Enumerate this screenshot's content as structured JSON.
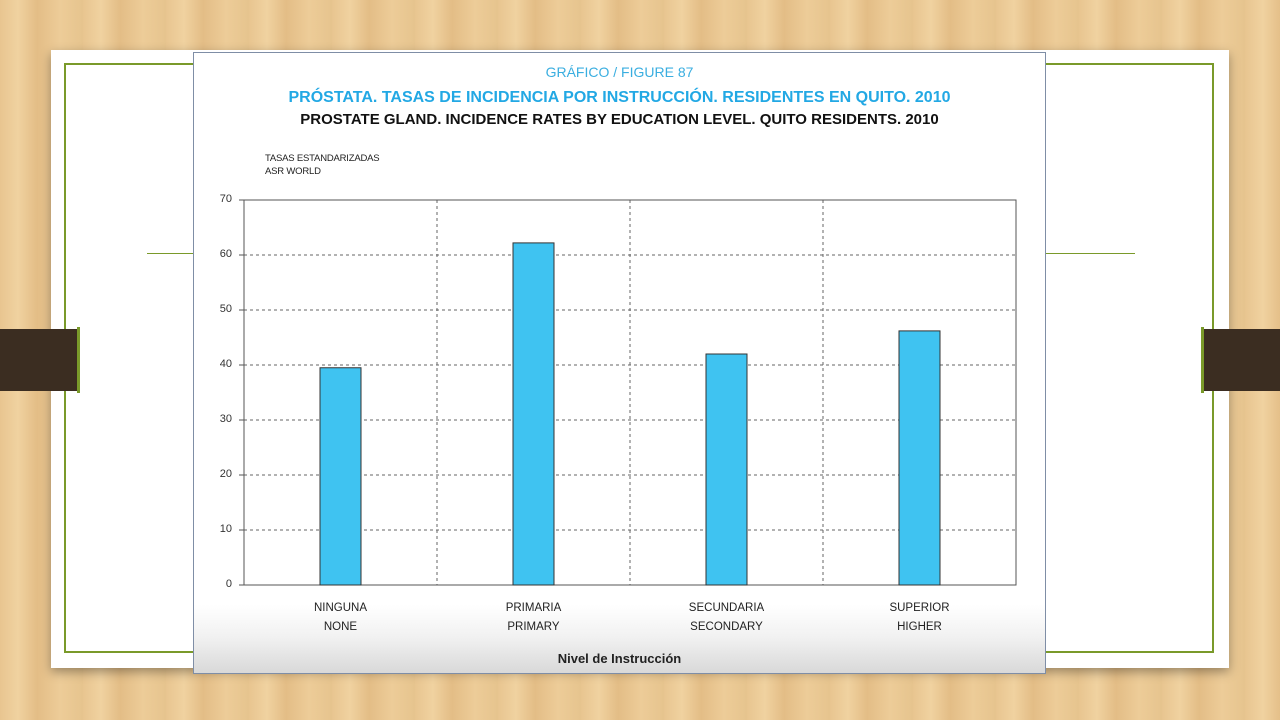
{
  "figure": {
    "label": "GRÁFICO / FIGURE 87",
    "title_es": "PRÓSTATA. TASAS DE INCIDENCIA POR INSTRUCCIÓN. RESIDENTES EN QUITO. 2010",
    "title_en": "PROSTATE GLAND. INCIDENCE RATES BY EDUCATION LEVEL. QUITO RESIDENTS. 2010"
  },
  "colors": {
    "bar": "#3fc3f1",
    "accent_frame": "#7a9a2a",
    "tab": "#3b2d21"
  },
  "chart_data": {
    "type": "bar",
    "ylabel_line1": "TASAS ESTANDARIZADAS",
    "ylabel_line2": "ASR WORLD",
    "xlabel": "Nivel de Instrucción",
    "categories": [
      {
        "es": "NINGUNA",
        "en": "NONE"
      },
      {
        "es": "PRIMARIA",
        "en": "PRIMARY"
      },
      {
        "es": "SECUNDARIA",
        "en": "SECONDARY"
      },
      {
        "es": "SUPERIOR",
        "en": "HIGHER"
      }
    ],
    "values": [
      39.5,
      62.2,
      42.0,
      46.2
    ],
    "ylim": [
      0,
      70
    ],
    "yticks": [
      0,
      10,
      20,
      30,
      40,
      50,
      60,
      70
    ],
    "grid": true
  }
}
